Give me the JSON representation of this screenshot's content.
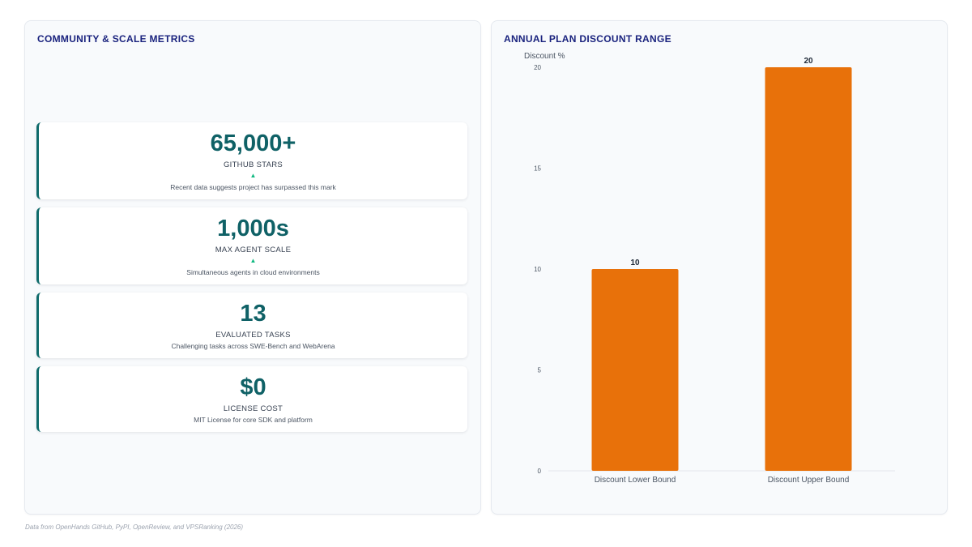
{
  "left": {
    "title": "COMMUNITY & SCALE METRICS",
    "cards": [
      {
        "value": "65,000+",
        "label": "GITHUB STARS",
        "arrow": "▲",
        "desc": "Recent data suggests project has surpassed this mark"
      },
      {
        "value": "1,000s",
        "label": "MAX AGENT SCALE",
        "arrow": "▲",
        "desc": "Simultaneous agents in cloud environments"
      },
      {
        "value": "13",
        "label": "EVALUATED TASKS",
        "desc": "Challenging tasks across SWE-Bench and WebArena"
      },
      {
        "value": "$0",
        "label": "LICENSE COST",
        "desc": "MIT License for core SDK and platform"
      }
    ]
  },
  "right": {
    "title": "ANNUAL PLAN DISCOUNT RANGE"
  },
  "chart_data": {
    "type": "bar",
    "title": "ANNUAL PLAN DISCOUNT RANGE",
    "categories": [
      "Discount Lower Bound",
      "Discount Upper Bound"
    ],
    "values": [
      10,
      20
    ],
    "data_labels": [
      "10",
      "20"
    ],
    "ylabel": "Discount %",
    "xlabel": "",
    "ylim": [
      0,
      20
    ],
    "yticks": [
      0,
      5,
      10,
      15,
      20
    ],
    "grid": false,
    "bar_color": "#e8710a"
  },
  "footer": "Data from OpenHands GitHub, PyPI, OpenReview, and VPSRanking (2026)"
}
